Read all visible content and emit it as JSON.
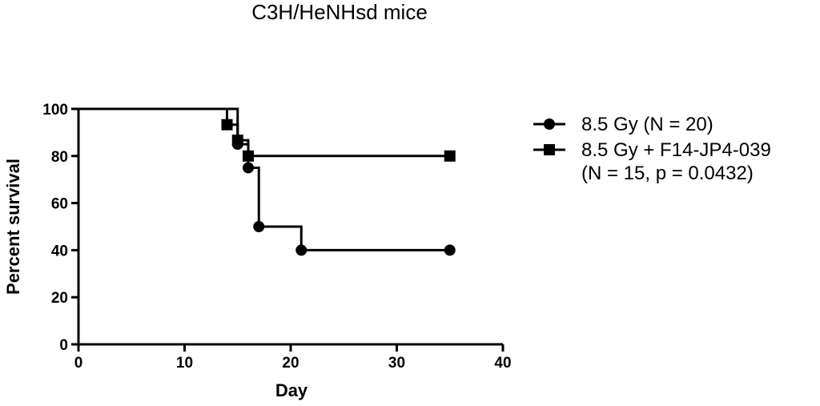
{
  "chart_data": {
    "type": "line",
    "subtype": "kaplan-meier",
    "title": "C3H/HeNHsd mice",
    "xlabel": "Day",
    "ylabel": "Percent survival",
    "xlim": [
      0,
      40
    ],
    "ylim": [
      0,
      100
    ],
    "xticks": [
      0,
      10,
      20,
      30,
      40
    ],
    "yticks": [
      0,
      20,
      40,
      60,
      80,
      100
    ],
    "grid": false,
    "legend_position": "right",
    "series": [
      {
        "name": "8.5 Gy (N = 20)",
        "marker": "circle",
        "color": "#000000",
        "steps": [
          [
            0,
            100
          ],
          [
            15,
            85
          ],
          [
            16,
            75
          ],
          [
            17,
            50
          ],
          [
            21,
            40
          ],
          [
            35,
            40
          ]
        ],
        "points": [
          [
            15,
            85
          ],
          [
            16,
            75
          ],
          [
            17,
            50
          ],
          [
            21,
            40
          ],
          [
            35,
            40
          ]
        ]
      },
      {
        "name": "8.5 Gy + F14-JP4-039",
        "name_line2": "(N = 15, p = 0.0432)",
        "marker": "square",
        "color": "#000000",
        "steps": [
          [
            0,
            100
          ],
          [
            14,
            93.3
          ],
          [
            15,
            86.7
          ],
          [
            16,
            80
          ],
          [
            35,
            80
          ]
        ],
        "points": [
          [
            14,
            93.3
          ],
          [
            15,
            86.7
          ],
          [
            16,
            80
          ],
          [
            35,
            80
          ]
        ]
      }
    ]
  }
}
